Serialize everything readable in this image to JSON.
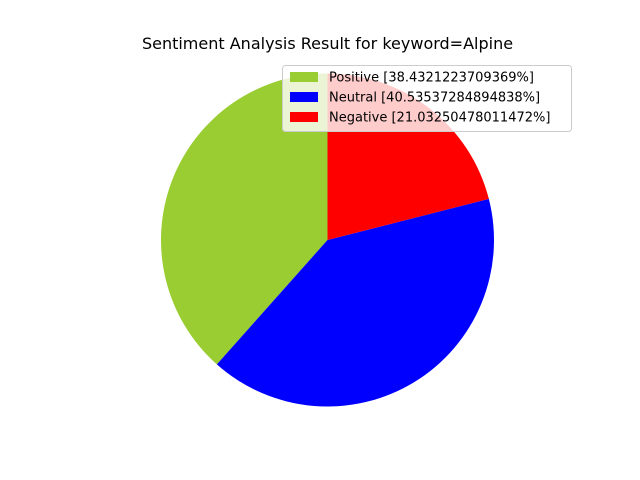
{
  "chart_data": {
    "type": "pie",
    "title": "Sentiment Analysis Result for keyword=Alpine",
    "start_angle_deg": 90,
    "direction": "counterclockwise",
    "legend_position": "top-right",
    "slices": [
      {
        "label": "Positive [38.4321223709369%]",
        "name": "Positive",
        "value": 38.4321223709369,
        "color": "#9acd32"
      },
      {
        "label": "Neutral [40.53537284894838%]",
        "name": "Neutral",
        "value": 40.53537284894838,
        "color": "#0000ff"
      },
      {
        "label": "Negative [21.03250478011472%]",
        "name": "Negative",
        "value": 21.03250478011472,
        "color": "#ff0000"
      }
    ]
  }
}
